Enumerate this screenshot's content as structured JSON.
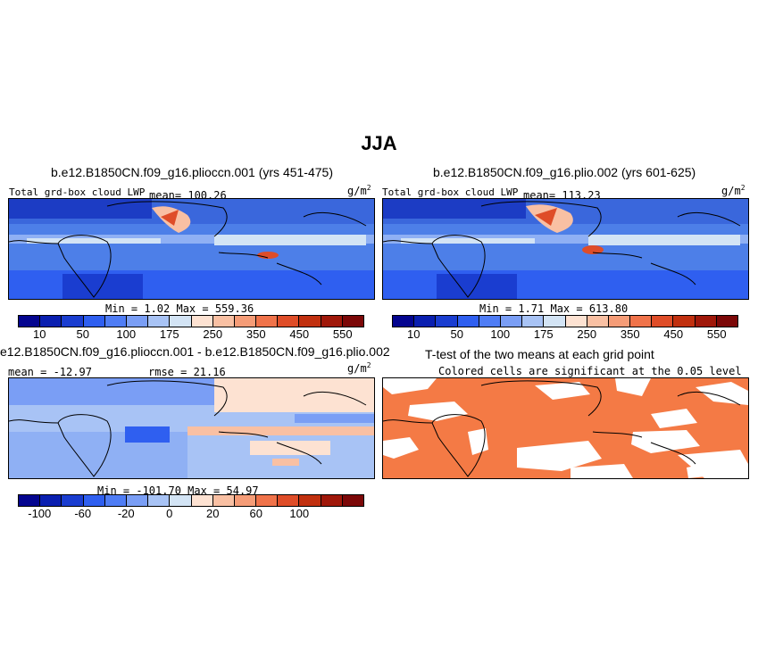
{
  "title": "JJA",
  "panels": {
    "p1": {
      "title": "b.e12.B1850CN.f09_g16.plioccn.001 (yrs 451-475)",
      "left_label": "Total grd-box cloud LWP",
      "mean": "mean= 100.26",
      "units": "g/m",
      "units_sup": "2",
      "minmax": "Min =   1.02  Max = 559.36"
    },
    "p2": {
      "title": "b.e12.B1850CN.f09_g16.plio.002 (yrs 601-625)",
      "left_label": "Total grd-box cloud LWP",
      "mean": "mean= 113.23",
      "units": "g/m",
      "units_sup": "2",
      "minmax": "Min =   1.71  Max = 613.80"
    },
    "p3": {
      "title": "e12.B1850CN.f09_g16.plioccn.001 - b.e12.B1850CN.f09_g16.plio.002",
      "mean": "mean = -12.97",
      "rmse": "rmse =   21.16",
      "units": "g/m",
      "units_sup": "2",
      "minmax": "Min = -101.70  Max =  54.97"
    },
    "p4": {
      "title": "T-test of the two means at each grid point",
      "subtitle": "Colored cells are significant at the 0.05 level"
    }
  },
  "colorbar_abs": {
    "colors": [
      "#04058f",
      "#0a1fb0",
      "#1a3dd0",
      "#2f5ff0",
      "#4f7df5",
      "#7a9ef5",
      "#a8c3f5",
      "#d3e4f5",
      "#fde2d2",
      "#f9c0a3",
      "#f59c77",
      "#f0734a",
      "#df4d28",
      "#c1300f",
      "#a0180a",
      "#7c0808"
    ],
    "ticks": [
      "10",
      "50",
      "100",
      "175",
      "250",
      "350",
      "450",
      "550"
    ]
  },
  "colorbar_diff": {
    "colors": [
      "#04058f",
      "#0a1fb0",
      "#1a3dd0",
      "#2f5ff0",
      "#4f7df5",
      "#7a9ef5",
      "#a8c3f5",
      "#d3e4f5",
      "#fde2d2",
      "#f9c0a3",
      "#f59c77",
      "#f0734a",
      "#df4d28",
      "#c1300f",
      "#a0180a",
      "#7c0808"
    ],
    "ticks": [
      "-100",
      "-60",
      "-20",
      "0",
      "20",
      "60",
      "100"
    ]
  },
  "colors": {
    "field_blue": "#4d7fe8",
    "field_dark": "#1c3cc4",
    "diff_light": "#a8c3f5",
    "signif": "#f47a45"
  }
}
